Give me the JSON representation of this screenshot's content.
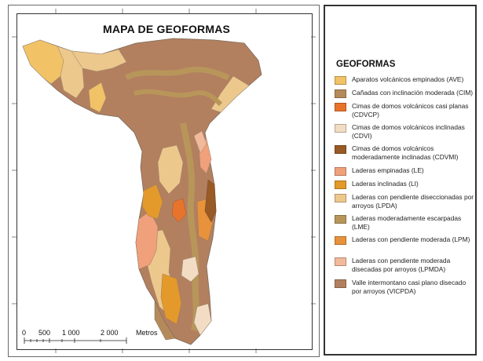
{
  "map": {
    "title": "MAPA DE GEOFORMAS"
  },
  "legend": {
    "title": "GEOFORMAS",
    "items": [
      {
        "label": "Aparatos volcánicos empinados (AVE)",
        "color": "#f2c267"
      },
      {
        "label": "Cañadas con inclinación moderada (CIM)",
        "color": "#b58a5a"
      },
      {
        "label": "Cimas de domos volcánicos casi planas (CDVCP)",
        "color": "#e8742b"
      },
      {
        "label": "Cimas de domos volcánicos inclinadas (CDVI)",
        "color": "#f3dcc4"
      },
      {
        "label": "Cimas de domos volcánicos moderadamente inclinadas (CDVMI)",
        "color": "#9a5a25"
      },
      {
        "label": "Laderas empinadas (LE)",
        "color": "#f0a07a"
      },
      {
        "label": "Laderas inclinadas (LI)",
        "color": "#e39a2a"
      },
      {
        "label": "Laderas con pendiente diseccionadas por arroyos (LPDA)",
        "color": "#edc88d"
      },
      {
        "label": "Laderas moderadamente escarpadas (LME)",
        "color": "#b8965a"
      },
      {
        "label": "Laderas con pendiente moderada (LPM)",
        "color": "#e8923c"
      },
      {
        "label": "Laderas con pendiente moderada disecadas por arroyos (LPMDA)",
        "color": "#f2b99b"
      },
      {
        "label": "Valle intermontano casi plano disecado por arroyos (VICPDA)",
        "color": "#b3805f"
      }
    ]
  },
  "scale_bar": {
    "labels": [
      "0",
      "500",
      "1 000",
      "2 000"
    ],
    "unit": "Metros"
  }
}
